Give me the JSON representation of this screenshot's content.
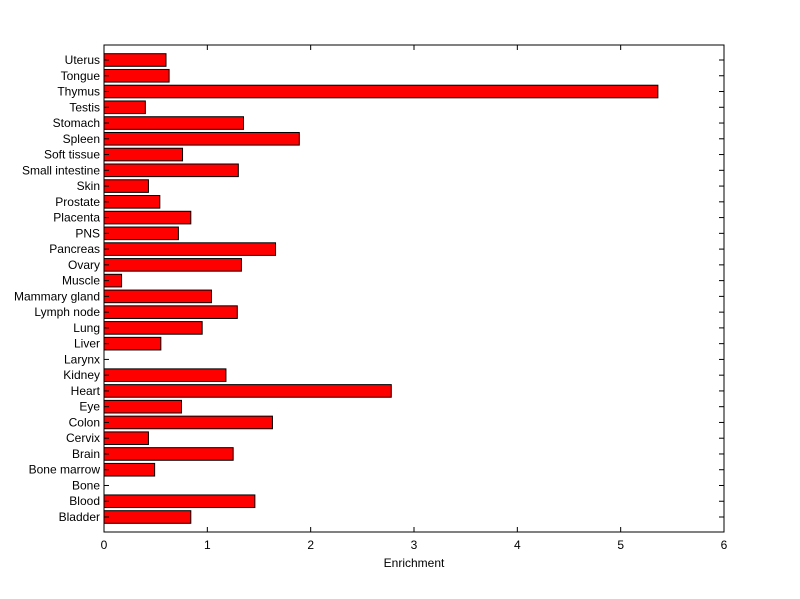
{
  "chart_data": {
    "type": "bar",
    "orientation": "horizontal",
    "title": "",
    "xlabel": "Enrichment",
    "ylabel": "",
    "xlim": [
      0,
      6
    ],
    "xticks": [
      0,
      1,
      2,
      3,
      4,
      5,
      6
    ],
    "grid": false,
    "bar_color": "#ff0000",
    "bar_edge_color": "#000000",
    "categories": [
      "Bladder",
      "Blood",
      "Bone",
      "Bone marrow",
      "Brain",
      "Cervix",
      "Colon",
      "Eye",
      "Heart",
      "Kidney",
      "Larynx",
      "Liver",
      "Lung",
      "Lymph node",
      "Mammary gland",
      "Muscle",
      "Ovary",
      "Pancreas",
      "PNS",
      "Placenta",
      "Prostate",
      "Skin",
      "Small intestine",
      "Soft tissue",
      "Spleen",
      "Stomach",
      "Testis",
      "Thymus",
      "Tongue",
      "Uterus"
    ],
    "values": [
      0.84,
      1.46,
      0,
      0.49,
      1.25,
      0.43,
      1.63,
      0.75,
      2.78,
      1.18,
      0,
      0.55,
      0.95,
      1.29,
      1.04,
      0.17,
      1.33,
      1.66,
      0.72,
      0.84,
      0.54,
      0.43,
      1.3,
      0.76,
      1.89,
      1.35,
      0.4,
      5.36,
      0.63,
      0.6
    ]
  }
}
